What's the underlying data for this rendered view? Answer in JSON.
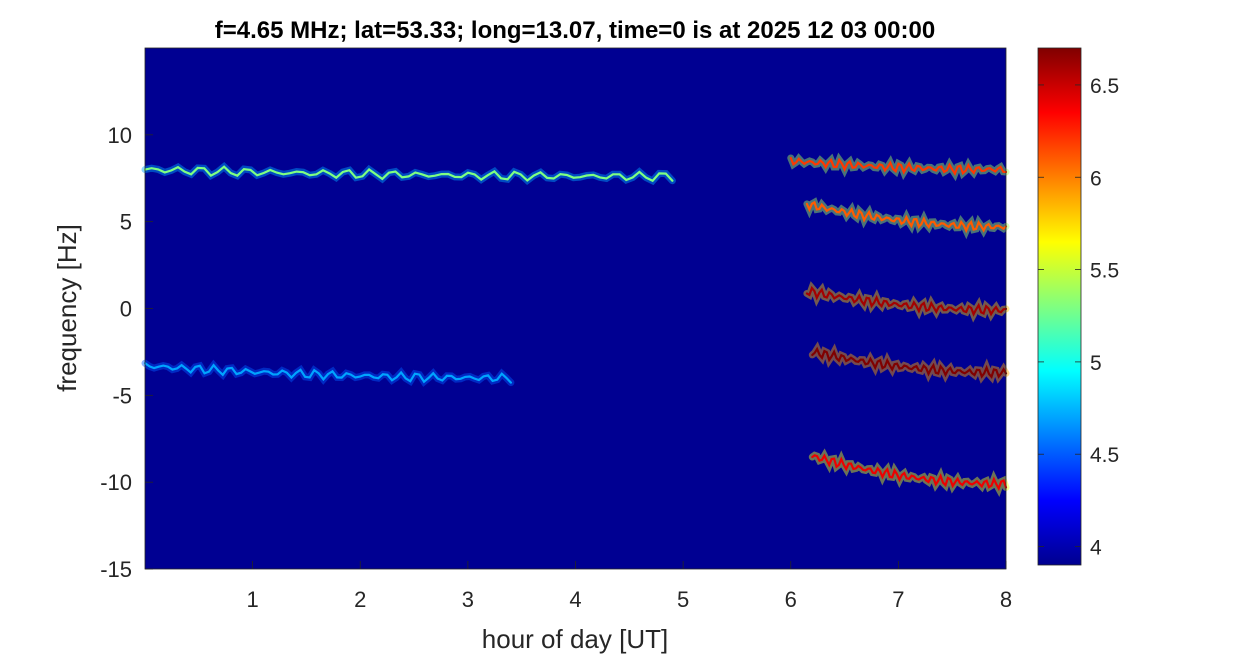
{
  "chart_data": {
    "type": "heatmap",
    "title": "f=4.65 MHz;  lat=53.33; long=13.07, time=0 is at 2025 12 03 00:00",
    "xlabel": "hour of day [UT]",
    "ylabel": "frequency [Hz]",
    "xlim": [
      0,
      8
    ],
    "ylim": [
      -15,
      15
    ],
    "xticks": [
      1,
      2,
      3,
      4,
      5,
      6,
      7,
      8
    ],
    "yticks": [
      -15,
      -10,
      -5,
      0,
      5,
      10
    ],
    "colormap": "jet",
    "clim": [
      3.9,
      6.7
    ],
    "colorbar_ticks": [
      4,
      4.5,
      5,
      5.5,
      6,
      6.5
    ],
    "grid": false,
    "background_level": 3.95,
    "traces": [
      {
        "start_hour": 0.0,
        "end_hour": 4.9,
        "start_freq": 8.0,
        "end_freq": 7.6,
        "level": 4.7,
        "peak_level": 5.3
      },
      {
        "start_hour": 0.0,
        "end_hour": 3.4,
        "start_freq": -3.3,
        "end_freq": -4.0,
        "level": 4.5,
        "peak_level": 4.7
      },
      {
        "start_hour": 6.0,
        "end_hour": 8.0,
        "start_freq": 8.5,
        "end_freq": 8.0,
        "level": 5.4,
        "peak_level": 6.2
      },
      {
        "start_hour": 6.15,
        "end_hour": 8.0,
        "start_freq": 6.0,
        "end_freq": 4.7,
        "level": 5.4,
        "peak_level": 6.1
      },
      {
        "start_hour": 6.15,
        "end_hour": 8.0,
        "start_freq": 1.0,
        "end_freq": -0.1,
        "level": 5.8,
        "peak_level": 6.6
      },
      {
        "start_hour": 6.2,
        "end_hour": 8.0,
        "start_freq": -2.5,
        "end_freq": -3.7,
        "level": 5.9,
        "peak_level": 6.7
      },
      {
        "start_hour": 6.2,
        "end_hour": 8.0,
        "start_freq": -8.5,
        "end_freq": -10.1,
        "level": 5.6,
        "peak_level": 6.4
      }
    ]
  }
}
